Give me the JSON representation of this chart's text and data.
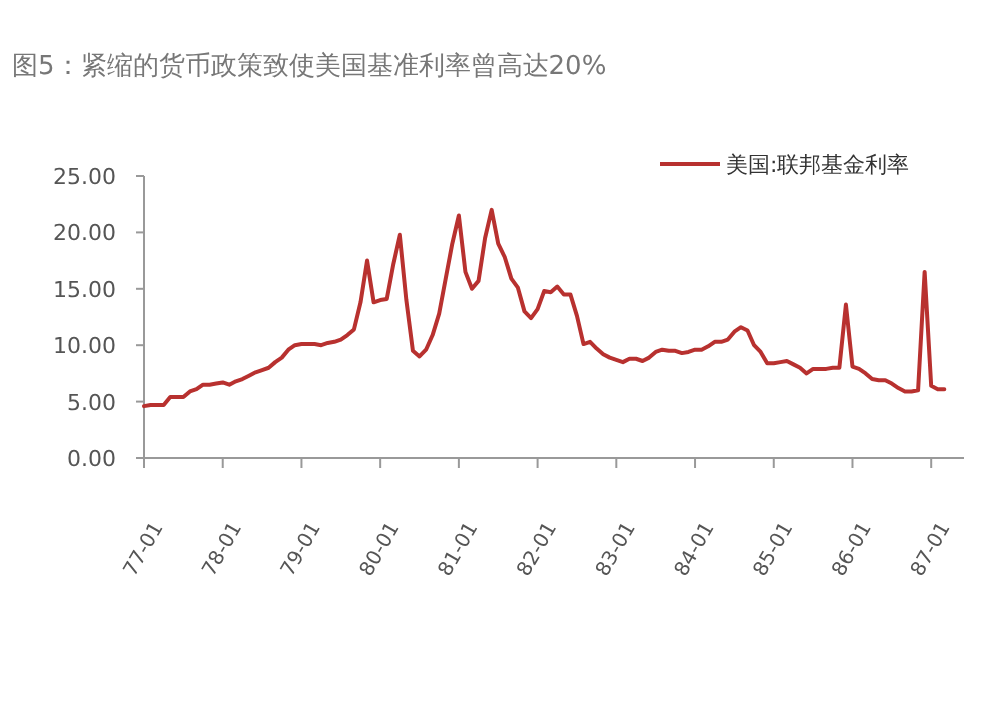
{
  "chart_data": {
    "type": "line",
    "title": "图5：紧缩的货币政策致使美国基准利率曾高达20%",
    "categories": [
      "77-01",
      null,
      null,
      null,
      null,
      null,
      null,
      null,
      null,
      null,
      null,
      null,
      "78-01",
      null,
      null,
      null,
      null,
      null,
      null,
      null,
      null,
      null,
      null,
      null,
      "79-01",
      null,
      null,
      null,
      null,
      null,
      null,
      null,
      null,
      null,
      null,
      null,
      "80-01",
      null,
      null,
      null,
      null,
      null,
      null,
      null,
      null,
      null,
      null,
      null,
      "81-01",
      null,
      null,
      null,
      null,
      null,
      null,
      null,
      null,
      null,
      null,
      null,
      "82-01",
      null,
      null,
      null,
      null,
      null,
      null,
      null,
      null,
      null,
      null,
      null,
      "83-01",
      null,
      null,
      null,
      null,
      null,
      null,
      null,
      null,
      null,
      null,
      null,
      "84-01",
      null,
      null,
      null,
      null,
      null,
      null,
      null,
      null,
      null,
      null,
      null,
      "85-01",
      null,
      null,
      null,
      null,
      null,
      null,
      null,
      null,
      null,
      null,
      null,
      "86-01",
      null,
      null,
      null,
      null,
      null,
      null,
      null,
      null,
      null,
      null,
      null,
      "87-01",
      null,
      null,
      null,
      null,
      null
    ],
    "series": [
      {
        "name": "美国:联邦基金利率",
        "color": "#b8312f",
        "values": [
          4.6,
          4.7,
          4.7,
          4.7,
          5.4,
          5.4,
          5.4,
          5.9,
          6.1,
          6.5,
          6.5,
          6.6,
          6.7,
          6.5,
          6.8,
          7.0,
          7.3,
          7.6,
          7.8,
          8.0,
          8.5,
          8.9,
          9.6,
          10.0,
          10.1,
          10.1,
          10.1,
          10.0,
          10.2,
          10.3,
          10.5,
          10.9,
          11.4,
          13.8,
          17.5,
          13.8,
          14.0,
          14.1,
          17.2,
          19.8,
          14.0,
          9.5,
          9.0,
          9.6,
          10.9,
          12.8,
          15.9,
          19.0,
          21.5,
          16.5,
          15.0,
          15.7,
          19.5,
          22.0,
          19.0,
          17.8,
          15.9,
          15.1,
          13.0,
          12.4,
          13.2,
          14.8,
          14.7,
          15.2,
          14.5,
          14.5,
          12.6,
          10.1,
          10.3,
          9.7,
          9.2,
          8.9,
          8.7,
          8.5,
          8.8,
          8.8,
          8.6,
          8.9,
          9.4,
          9.6,
          9.5,
          9.5,
          9.3,
          9.4,
          9.6,
          9.6,
          9.9,
          10.3,
          10.3,
          10.5,
          11.2,
          11.6,
          11.3,
          10.0,
          9.4,
          8.4,
          8.4,
          8.5,
          8.6,
          8.3,
          8.0,
          7.5,
          7.9,
          7.9,
          7.9,
          8.0,
          8.0,
          13.6,
          8.1,
          7.9,
          7.5,
          7.0,
          6.9,
          6.9,
          6.6,
          6.2,
          5.9,
          5.9,
          6.0,
          16.5,
          6.4,
          6.1,
          6.1,
          null,
          null,
          null
        ]
      }
    ],
    "ylim": [
      0,
      25
    ],
    "yticks": [
      {
        "value": 0,
        "label": "0.00"
      },
      {
        "value": 5,
        "label": "5.00"
      },
      {
        "value": 10,
        "label": "10.00"
      },
      {
        "value": 15,
        "label": "15.00"
      },
      {
        "value": 20,
        "label": "20.00"
      },
      {
        "value": 25,
        "label": "25.00"
      }
    ],
    "legend": "top right",
    "grid": false,
    "marker": "none",
    "line_style": "solid"
  }
}
